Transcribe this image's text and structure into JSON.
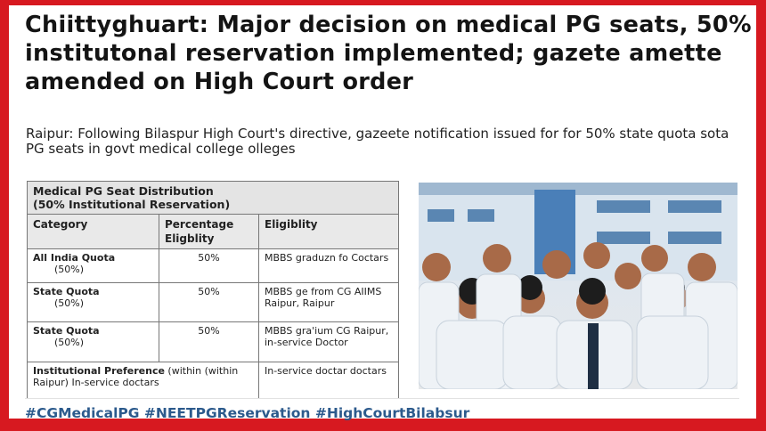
{
  "headline": "Chiittyghuart: Major decision on medical PG seats, 50% institutonal reservation implemented; gazete amette amended on High Court order",
  "lede": "Raipur: Following Bilaspur High Court's directive,      gazeete notification issued for for 50% state quota sota PG seats in govt medical college olleges",
  "table": {
    "title_line1": "Medical PG Seat Distribution",
    "title_line2": "(50% Institutional Reservation)",
    "headers": [
      "Category",
      "Percentage Eligblity",
      "Eligiblity"
    ],
    "rows": [
      {
        "category": "All India Quota",
        "sub": "(50%)",
        "percent": "50%",
        "eligibility": "MBBS graduzn fo Coctars"
      },
      {
        "category": "State Quota",
        "sub": "(50%)",
        "percent": "50%",
        "eligibility": "MBBS ge from CG AIIMS Raipur, Raipur"
      },
      {
        "category": "State Quota",
        "sub": "(50%)",
        "percent": "50%",
        "eligibility": "MBBS gra'ium CG Raipur, in-service Doctor"
      }
    ],
    "last_row": {
      "category_bold": "Institutional Preference",
      "category_rest": " (within (within Raipur) In-service doctars",
      "eligibility": "In-service doctar doctars"
    }
  },
  "hashtags": "#CGMedicalPG #NEETPGReservation #HighCourtBilabsur",
  "colors": {
    "border": "#d71920",
    "hashtag": "#2c5a8c"
  }
}
